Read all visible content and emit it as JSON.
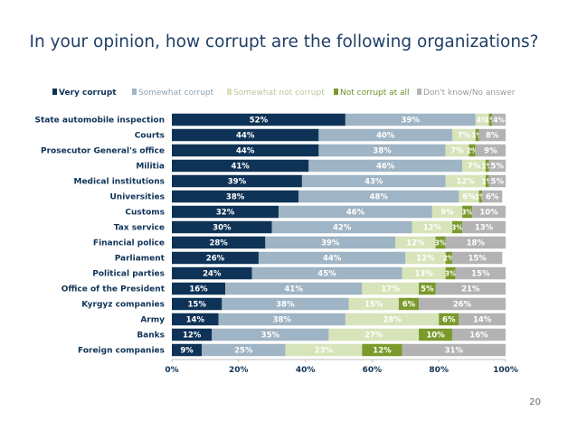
{
  "title": "In your opinion, how corrupt are the following organizations?",
  "page_number": "20",
  "chart_data": {
    "type": "bar",
    "orientation": "horizontal",
    "stacked": true,
    "normalized_percent": true,
    "legend_position": "top",
    "grid": false,
    "xlim": [
      0,
      100
    ],
    "x_ticks": [
      "0%",
      "20%",
      "40%",
      "60%",
      "80%",
      "100%"
    ],
    "categories": [
      "State automobile inspection",
      "Courts",
      "Prosecutor General's office",
      "Militia",
      "Medical institutions",
      "Universities",
      "Customs",
      "Tax service",
      "Financial police",
      "Parliament",
      "Political parties",
      "Office of the President",
      "Kyrgyz companies",
      "Army",
      "Banks",
      "Foreign companies"
    ],
    "series": [
      {
        "name": "Very corrupt",
        "color": "#0f3357",
        "values": [
          52,
          44,
          44,
          41,
          39,
          38,
          32,
          30,
          28,
          26,
          24,
          16,
          15,
          14,
          12,
          9
        ]
      },
      {
        "name": "Somewhat corrupt",
        "color": "#9fb4c4",
        "values": [
          39,
          40,
          38,
          46,
          43,
          48,
          46,
          42,
          39,
          44,
          45,
          41,
          38,
          38,
          35,
          25
        ]
      },
      {
        "name": "Somewhat not corrupt",
        "color": "#d7e3b9",
        "values": [
          4,
          7,
          7,
          7,
          12,
          6,
          9,
          12,
          12,
          12,
          13,
          17,
          15,
          28,
          27,
          23
        ]
      },
      {
        "name": "Not corrupt at all",
        "color": "#7a9a2c",
        "values": [
          1,
          1,
          2,
          1,
          1,
          1,
          3,
          3,
          3,
          2,
          3,
          5,
          6,
          6,
          10,
          12
        ]
      },
      {
        "name": "Don't know/No answer",
        "color": "#b3b3b3",
        "values": [
          4,
          8,
          9,
          5,
          5,
          6,
          10,
          13,
          18,
          15,
          15,
          21,
          26,
          14,
          16,
          31
        ]
      }
    ]
  }
}
